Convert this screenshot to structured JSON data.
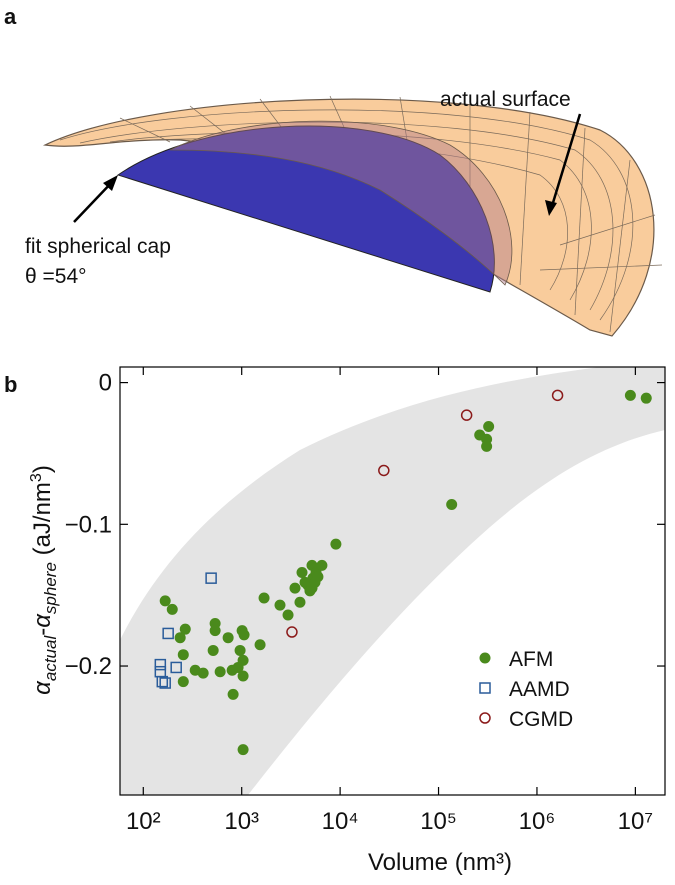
{
  "panel_a": {
    "label": "a",
    "annotation_surface": "actual surface",
    "annotation_cap": "fit spherical cap",
    "annotation_angle": "θ =54°"
  },
  "chart_data": {
    "type": "scatter",
    "panel_label": "b",
    "xlabel": "Volume (nm³)",
    "ylabel": [
      "α",
      "actual",
      "-",
      "α",
      "sphere",
      " (aJ/nm",
      "3",
      ")"
    ],
    "log_x": true,
    "xlim": [
      58,
      20000000
    ],
    "ylim": [
      -0.291,
      0.011
    ],
    "xticks": [
      {
        "value": 100,
        "label": "10²"
      },
      {
        "value": 1000,
        "label": "10³"
      },
      {
        "value": 10000,
        "label": "10⁴"
      },
      {
        "value": 100000,
        "label": "10⁵"
      },
      {
        "value": 1000000,
        "label": "10⁶"
      },
      {
        "value": 10000000,
        "label": "10⁷"
      }
    ],
    "yticks": [
      0,
      {
        "value": -0.1,
        "label": "−0.1"
      },
      {
        "value": -0.2,
        "label": "−0.2"
      }
    ],
    "legend": "lower right",
    "series": [
      {
        "name": "AFM",
        "color": "#4a8a1c",
        "marker": "filled-circle",
        "x": [
          167,
          197,
          237,
          267,
          255,
          255,
          337,
          406,
          513,
          537,
          537,
          604,
          728,
          800,
          818,
          919,
          963,
          1010,
          1033,
          1033,
          1033,
          1057,
          1537,
          1687,
          2450,
          2957,
          3480,
          3910,
          4100,
          4400,
          4710,
          4940,
          5180,
          5300,
          5550,
          5180,
          5690,
          5950,
          6530,
          9060,
          136000,
          262000,
          308000,
          308000,
          323000,
          8900000,
          12900000
        ],
        "values": [
          -0.154,
          -0.16,
          -0.18,
          -0.174,
          -0.192,
          -0.211,
          -0.203,
          -0.205,
          -0.189,
          -0.17,
          -0.175,
          -0.204,
          -0.18,
          -0.203,
          -0.22,
          -0.201,
          -0.189,
          -0.175,
          -0.207,
          -0.196,
          -0.259,
          -0.178,
          -0.185,
          -0.152,
          -0.157,
          -0.164,
          -0.145,
          -0.155,
          -0.134,
          -0.141,
          -0.143,
          -0.147,
          -0.129,
          -0.138,
          -0.141,
          -0.145,
          -0.134,
          -0.137,
          -0.129,
          -0.114,
          -0.086,
          -0.037,
          -0.04,
          -0.045,
          -0.031,
          -0.009,
          -0.011
        ]
      },
      {
        "name": "AAMD",
        "color": "#2a5c9a",
        "marker": "open-square",
        "x": [
          149,
          149,
          156,
          167,
          179,
          216,
          489
        ],
        "values": [
          -0.199,
          -0.204,
          -0.211,
          -0.212,
          -0.177,
          -0.201,
          -0.138
        ]
      },
      {
        "name": "CGMD",
        "color": "#8b1a1a",
        "marker": "open-circle",
        "x": [
          3240,
          27800,
          193000,
          1620000
        ],
        "values": [
          -0.176,
          -0.062,
          -0.023,
          -0.009
        ]
      }
    ]
  }
}
